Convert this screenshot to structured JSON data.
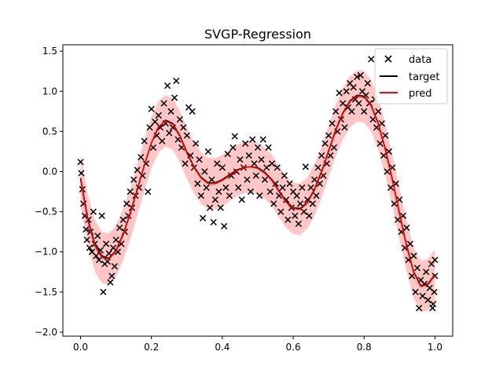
{
  "chart_data": {
    "type": "scatter",
    "title": "SVGP-Regression",
    "xlabel": "",
    "ylabel": "",
    "xlim": [
      -0.05,
      1.05
    ],
    "ylim": [
      -2.05,
      1.58
    ],
    "x_ticks": [
      "0.0",
      "0.2",
      "0.4",
      "0.6",
      "0.8",
      "1.0"
    ],
    "x_tick_values": [
      0.0,
      0.2,
      0.4,
      0.6,
      0.8,
      1.0
    ],
    "y_ticks": [
      "1.5",
      "1.0",
      "0.5",
      "0.0",
      "−0.5",
      "−1.0",
      "−1.5",
      "−2.0"
    ],
    "y_tick_values": [
      1.5,
      1.0,
      0.5,
      0.0,
      -0.5,
      -1.0,
      -1.5,
      -2.0
    ],
    "grid": false,
    "legend_position": "top-right",
    "legend": [
      {
        "label": "data",
        "marker": "x",
        "color": "#000000"
      },
      {
        "label": "target",
        "marker": "line",
        "color": "#000000"
      },
      {
        "label": "pred",
        "marker": "line",
        "color": "#ff0000"
      }
    ],
    "band_color": "#ffb3b3",
    "series": [
      {
        "name": "target",
        "type": "line",
        "color": "#000000",
        "x": [
          0.0,
          0.02,
          0.04,
          0.06,
          0.08,
          0.1,
          0.12,
          0.14,
          0.16,
          0.18,
          0.2,
          0.22,
          0.24,
          0.26,
          0.28,
          0.3,
          0.32,
          0.34,
          0.36,
          0.38,
          0.4,
          0.42,
          0.44,
          0.46,
          0.48,
          0.5,
          0.52,
          0.54,
          0.56,
          0.58,
          0.6,
          0.62,
          0.64,
          0.66,
          0.68,
          0.7,
          0.72,
          0.74,
          0.76,
          0.78,
          0.8,
          0.82,
          0.84,
          0.86,
          0.88,
          0.9,
          0.92,
          0.94,
          0.96,
          0.98,
          1.0
        ],
        "y": [
          -0.08,
          -0.58,
          -0.9,
          -1.05,
          -1.08,
          -0.98,
          -0.78,
          -0.52,
          -0.22,
          0.08,
          0.36,
          0.55,
          0.64,
          0.6,
          0.45,
          0.24,
          0.06,
          -0.07,
          -0.14,
          -0.14,
          -0.1,
          -0.04,
          0.02,
          0.05,
          0.06,
          0.05,
          -0.01,
          -0.1,
          -0.24,
          -0.37,
          -0.45,
          -0.46,
          -0.38,
          -0.22,
          0.0,
          0.26,
          0.52,
          0.73,
          0.88,
          0.95,
          0.94,
          0.83,
          0.6,
          0.28,
          -0.1,
          -0.52,
          -0.92,
          -1.25,
          -1.42,
          -1.4,
          -1.28
        ]
      },
      {
        "name": "pred",
        "type": "line",
        "color": "#ff0000",
        "x": [
          0.0,
          0.02,
          0.04,
          0.06,
          0.08,
          0.1,
          0.12,
          0.14,
          0.16,
          0.18,
          0.2,
          0.22,
          0.24,
          0.26,
          0.28,
          0.3,
          0.32,
          0.34,
          0.36,
          0.38,
          0.4,
          0.42,
          0.44,
          0.46,
          0.48,
          0.5,
          0.52,
          0.54,
          0.56,
          0.58,
          0.6,
          0.62,
          0.64,
          0.66,
          0.68,
          0.7,
          0.72,
          0.74,
          0.76,
          0.78,
          0.8,
          0.82,
          0.84,
          0.86,
          0.88,
          0.9,
          0.92,
          0.94,
          0.96,
          0.98,
          1.0
        ],
        "y": [
          -0.1,
          -0.6,
          -0.92,
          -1.07,
          -1.09,
          -0.99,
          -0.79,
          -0.53,
          -0.23,
          0.08,
          0.36,
          0.56,
          0.63,
          0.59,
          0.44,
          0.23,
          0.05,
          -0.08,
          -0.15,
          -0.15,
          -0.11,
          -0.05,
          0.01,
          0.05,
          0.06,
          0.04,
          -0.02,
          -0.11,
          -0.25,
          -0.38,
          -0.46,
          -0.47,
          -0.39,
          -0.23,
          -0.01,
          0.25,
          0.51,
          0.72,
          0.87,
          0.94,
          0.93,
          0.82,
          0.59,
          0.27,
          -0.11,
          -0.53,
          -0.93,
          -1.26,
          -1.43,
          -1.41,
          -1.29
        ]
      },
      {
        "name": "band",
        "type": "area",
        "lower": [
          -0.42,
          -0.92,
          -1.24,
          -1.39,
          -1.41,
          -1.31,
          -1.11,
          -0.85,
          -0.55,
          -0.24,
          0.04,
          0.24,
          0.31,
          0.27,
          0.12,
          -0.09,
          -0.27,
          -0.4,
          -0.47,
          -0.47,
          -0.43,
          -0.37,
          -0.31,
          -0.27,
          -0.26,
          -0.28,
          -0.34,
          -0.43,
          -0.57,
          -0.7,
          -0.78,
          -0.79,
          -0.71,
          -0.55,
          -0.33,
          -0.07,
          0.19,
          0.4,
          0.55,
          0.62,
          0.61,
          0.5,
          0.27,
          -0.05,
          -0.43,
          -0.85,
          -1.25,
          -1.58,
          -1.75,
          -1.73,
          -1.61
        ],
        "upper": [
          0.22,
          -0.28,
          -0.6,
          -0.75,
          -0.77,
          -0.67,
          -0.47,
          -0.21,
          0.09,
          0.4,
          0.68,
          0.88,
          0.95,
          0.91,
          0.76,
          0.55,
          0.37,
          0.24,
          0.17,
          0.17,
          0.21,
          0.27,
          0.33,
          0.37,
          0.38,
          0.36,
          0.3,
          0.21,
          0.07,
          -0.06,
          -0.14,
          -0.15,
          -0.07,
          0.09,
          0.31,
          0.57,
          0.83,
          1.04,
          1.19,
          1.26,
          1.25,
          1.14,
          0.91,
          0.59,
          0.21,
          -0.21,
          -0.61,
          -0.94,
          -1.11,
          -1.09,
          -0.97
        ]
      },
      {
        "name": "data",
        "type": "scatter",
        "color": "#000000",
        "points": [
          [
            0.0,
            0.12
          ],
          [
            0.002,
            -0.02
          ],
          [
            0.005,
            -0.22
          ],
          [
            0.008,
            -0.4
          ],
          [
            0.012,
            -0.55
          ],
          [
            0.015,
            -0.72
          ],
          [
            0.018,
            -0.85
          ],
          [
            0.022,
            -0.6
          ],
          [
            0.025,
            -0.95
          ],
          [
            0.028,
            -0.75
          ],
          [
            0.032,
            -1.0
          ],
          [
            0.036,
            -0.5
          ],
          [
            0.04,
            -0.9
          ],
          [
            0.044,
            -1.05
          ],
          [
            0.048,
            -0.8
          ],
          [
            0.052,
            -1.1
          ],
          [
            0.056,
            -0.98
          ],
          [
            0.06,
            -0.55
          ],
          [
            0.064,
            -1.5
          ],
          [
            0.068,
            -1.15
          ],
          [
            0.072,
            -0.9
          ],
          [
            0.076,
            -1.12
          ],
          [
            0.08,
            -1.02
          ],
          [
            0.084,
            -1.38
          ],
          [
            0.088,
            -1.3
          ],
          [
            0.092,
            -0.95
          ],
          [
            0.096,
            -1.18
          ],
          [
            0.1,
            -0.85
          ],
          [
            0.105,
            -1.0
          ],
          [
            0.11,
            -0.7
          ],
          [
            0.115,
            -0.9
          ],
          [
            0.12,
            -0.6
          ],
          [
            0.125,
            -0.75
          ],
          [
            0.13,
            -0.4
          ],
          [
            0.135,
            -0.55
          ],
          [
            0.14,
            -0.25
          ],
          [
            0.145,
            -0.45
          ],
          [
            0.15,
            -0.1
          ],
          [
            0.155,
            -0.3
          ],
          [
            0.16,
            0.02
          ],
          [
            0.165,
            -0.2
          ],
          [
            0.17,
            0.18
          ],
          [
            0.175,
            -0.05
          ],
          [
            0.18,
            0.38
          ],
          [
            0.185,
            0.1
          ],
          [
            0.19,
            -0.25
          ],
          [
            0.195,
            0.55
          ],
          [
            0.2,
            0.78
          ],
          [
            0.205,
            0.3
          ],
          [
            0.21,
            0.62
          ],
          [
            0.215,
            0.45
          ],
          [
            0.22,
            0.7
          ],
          [
            0.225,
            0.55
          ],
          [
            0.23,
            0.38
          ],
          [
            0.235,
            0.85
          ],
          [
            0.24,
            0.6
          ],
          [
            0.245,
            1.07
          ],
          [
            0.25,
            0.48
          ],
          [
            0.255,
            0.75
          ],
          [
            0.26,
            0.55
          ],
          [
            0.265,
            0.92
          ],
          [
            0.27,
            1.13
          ],
          [
            0.275,
            0.4
          ],
          [
            0.28,
            0.65
          ],
          [
            0.285,
            0.3
          ],
          [
            0.29,
            0.55
          ],
          [
            0.295,
            0.1
          ],
          [
            0.3,
            0.45
          ],
          [
            0.305,
            0.8
          ],
          [
            0.31,
            0.2
          ],
          [
            0.315,
            0.75
          ],
          [
            0.32,
            0.05
          ],
          [
            0.325,
            0.35
          ],
          [
            0.33,
            -0.15
          ],
          [
            0.335,
            0.15
          ],
          [
            0.34,
            -0.3
          ],
          [
            0.345,
            -0.58
          ],
          [
            0.35,
            0.0
          ],
          [
            0.355,
            -0.2
          ],
          [
            0.36,
            0.25
          ],
          [
            0.365,
            -0.45
          ],
          [
            0.37,
            -0.1
          ],
          [
            0.375,
            -0.63
          ],
          [
            0.38,
            -0.35
          ],
          [
            0.385,
            0.1
          ],
          [
            0.39,
            -0.25
          ],
          [
            0.395,
            -0.45
          ],
          [
            0.4,
            0.05
          ],
          [
            0.405,
            -0.68
          ],
          [
            0.41,
            -0.2
          ],
          [
            0.415,
            0.22
          ],
          [
            0.42,
            -0.3
          ],
          [
            0.425,
            -0.05
          ],
          [
            0.43,
            0.3
          ],
          [
            0.435,
            0.44
          ],
          [
            0.44,
            0.0
          ],
          [
            0.445,
            -0.2
          ],
          [
            0.45,
            0.15
          ],
          [
            0.455,
            -0.35
          ],
          [
            0.46,
            0.05
          ],
          [
            0.465,
            0.35
          ],
          [
            0.47,
            -0.1
          ],
          [
            0.475,
            0.2
          ],
          [
            0.48,
            -0.25
          ],
          [
            0.485,
            0.4
          ],
          [
            0.49,
            0.1
          ],
          [
            0.495,
            -0.05
          ],
          [
            0.5,
            0.3
          ],
          [
            0.505,
            -0.3
          ],
          [
            0.51,
            0.15
          ],
          [
            0.515,
            0.4
          ],
          [
            0.52,
            -0.1
          ],
          [
            0.525,
            0.05
          ],
          [
            0.53,
            0.3
          ],
          [
            0.535,
            -0.25
          ],
          [
            0.54,
            0.1
          ],
          [
            0.545,
            -0.4
          ],
          [
            0.55,
            -0.15
          ],
          [
            0.555,
            0.05
          ],
          [
            0.56,
            -0.3
          ],
          [
            0.565,
            -0.5
          ],
          [
            0.57,
            -0.2
          ],
          [
            0.575,
            -0.05
          ],
          [
            0.58,
            -0.35
          ],
          [
            0.585,
            -0.6
          ],
          [
            0.59,
            -0.15
          ],
          [
            0.595,
            -0.45
          ],
          [
            0.6,
            -0.25
          ],
          [
            0.605,
            -0.55
          ],
          [
            0.61,
            -0.3
          ],
          [
            0.615,
            -0.65
          ],
          [
            0.62,
            -0.4
          ],
          [
            0.625,
            -0.2
          ],
          [
            0.63,
            -0.5
          ],
          [
            0.635,
            0.06
          ],
          [
            0.64,
            -0.35
          ],
          [
            0.645,
            -0.55
          ],
          [
            0.65,
            -0.2
          ],
          [
            0.655,
            -0.4
          ],
          [
            0.66,
            -0.1
          ],
          [
            0.665,
            -0.3
          ],
          [
            0.67,
            0.05
          ],
          [
            0.675,
            -0.15
          ],
          [
            0.68,
            0.2
          ],
          [
            0.685,
            -0.05
          ],
          [
            0.69,
            0.35
          ],
          [
            0.695,
            0.1
          ],
          [
            0.7,
            0.45
          ],
          [
            0.705,
            0.2
          ],
          [
            0.71,
            0.6
          ],
          [
            0.715,
            0.3
          ],
          [
            0.72,
            0.75
          ],
          [
            0.725,
            0.5
          ],
          [
            0.73,
            0.98
          ],
          [
            0.735,
            0.65
          ],
          [
            0.74,
            0.85
          ],
          [
            0.745,
            0.55
          ],
          [
            0.75,
            1.0
          ],
          [
            0.755,
            0.8
          ],
          [
            0.76,
            1.1
          ],
          [
            0.765,
            0.75
          ],
          [
            0.77,
            1.05
          ],
          [
            0.775,
            0.9
          ],
          [
            0.78,
            1.18
          ],
          [
            0.785,
            0.85
          ],
          [
            0.79,
            1.2
          ],
          [
            0.795,
            1.0
          ],
          [
            0.8,
            0.75
          ],
          [
            0.805,
            0.95
          ],
          [
            0.81,
            1.1
          ],
          [
            0.815,
            0.85
          ],
          [
            0.82,
            1.4
          ],
          [
            0.825,
            0.65
          ],
          [
            0.83,
            0.9
          ],
          [
            0.835,
            0.55
          ],
          [
            0.84,
            0.75
          ],
          [
            0.845,
            0.35
          ],
          [
            0.85,
            0.6
          ],
          [
            0.855,
            0.2
          ],
          [
            0.86,
            0.45
          ],
          [
            0.865,
            0.0
          ],
          [
            0.87,
            0.25
          ],
          [
            0.875,
            -0.2
          ],
          [
            0.88,
            0.05
          ],
          [
            0.885,
            -0.4
          ],
          [
            0.89,
            -0.15
          ],
          [
            0.895,
            -0.6
          ],
          [
            0.9,
            -0.35
          ],
          [
            0.905,
            -0.75
          ],
          [
            0.91,
            -0.55
          ],
          [
            0.915,
            -0.95
          ],
          [
            0.92,
            -0.7
          ],
          [
            0.925,
            -1.1
          ],
          [
            0.93,
            -0.9
          ],
          [
            0.935,
            -1.3
          ],
          [
            0.94,
            -1.05
          ],
          [
            0.945,
            -1.5
          ],
          [
            0.95,
            -1.2
          ],
          [
            0.955,
            -1.7
          ],
          [
            0.96,
            -1.35
          ],
          [
            0.965,
            -1.55
          ],
          [
            0.97,
            -1.4
          ],
          [
            0.975,
            -1.25
          ],
          [
            0.98,
            -1.6
          ],
          [
            0.985,
            -1.45
          ],
          [
            0.99,
            -1.15
          ],
          [
            0.995,
            -1.65
          ],
          [
            1.0,
            -1.3
          ],
          [
            1.0,
            -1.1
          ],
          [
            0.998,
            -1.5
          ],
          [
            0.993,
            -1.7
          ]
        ]
      }
    ]
  }
}
